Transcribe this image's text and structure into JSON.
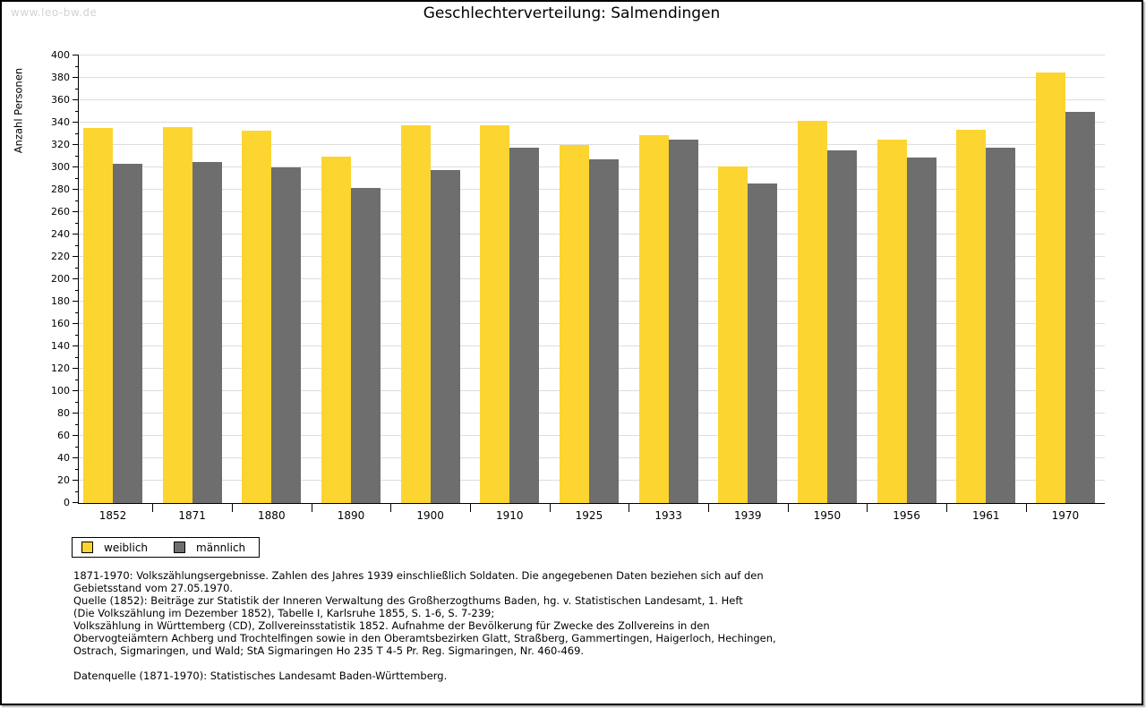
{
  "page": {
    "watermark": "www.leo-bw.de"
  },
  "chart_data": {
    "type": "bar",
    "title": "Geschlechterverteilung: Salmendingen",
    "xlabel": "",
    "ylabel": "Anzahl Personen",
    "ylim": [
      0,
      400
    ],
    "ytick_step": 20,
    "yminor_step": 10,
    "yticks": [
      0,
      20,
      40,
      60,
      80,
      100,
      120,
      140,
      160,
      180,
      200,
      220,
      240,
      260,
      280,
      300,
      320,
      340,
      360,
      380,
      400
    ],
    "grid": true,
    "legend_position": "bottom-left",
    "categories": [
      "1852",
      "1871",
      "1880",
      "1890",
      "1900",
      "1910",
      "1925",
      "1933",
      "1939",
      "1950",
      "1956",
      "1961",
      "1970"
    ],
    "series": [
      {
        "name": "weiblich",
        "color": "#FCD530",
        "values": [
          335,
          336,
          333,
          310,
          338,
          338,
          320,
          329,
          301,
          342,
          325,
          334,
          385
        ]
      },
      {
        "name": "männlich",
        "color": "#6E6E6E",
        "values": [
          303,
          305,
          300,
          282,
          298,
          318,
          307,
          325,
          286,
          315,
          309,
          318,
          350
        ]
      }
    ]
  },
  "footnotes": {
    "lines": [
      "1871-1970: Volkszählungsergebnisse. Zahlen des Jahres 1939 einschließlich Soldaten. Die angegebenen Daten beziehen sich auf den",
      "Gebietsstand vom 27.05.1970.",
      "Quelle (1852): Beiträge zur Statistik der Inneren Verwaltung des Großherzogthums Baden, hg. v. Statistischen Landesamt, 1. Heft",
      "(Die Volkszählung im Dezember 1852), Tabelle I, Karlsruhe 1855, S. 1-6, S. 7-239;",
      "Volkszählung in Württemberg (CD), Zollvereinsstatistik 1852. Aufnahme der Bevölkerung für Zwecke des Zollvereins in den",
      "Obervogteiämtern Achberg und Trochtelfingen sowie in den Oberamtsbezirken Glatt, Straßberg, Gammertingen, Haigerloch, Hechingen,",
      "Ostrach, Sigmaringen, und Wald; StA Sigmaringen Ho 235 T 4-5 Pr. Reg. Sigmaringen, Nr. 460-469."
    ],
    "datasource": "Datenquelle (1871-1970): Statistisches Landesamt Baden-Württemberg."
  },
  "colors": {
    "female_bar": "#FCD530",
    "male_bar": "#6E6E6E",
    "gridline": "#DDDDDD",
    "axis": "#000000",
    "watermark": "#D3D3D3"
  }
}
